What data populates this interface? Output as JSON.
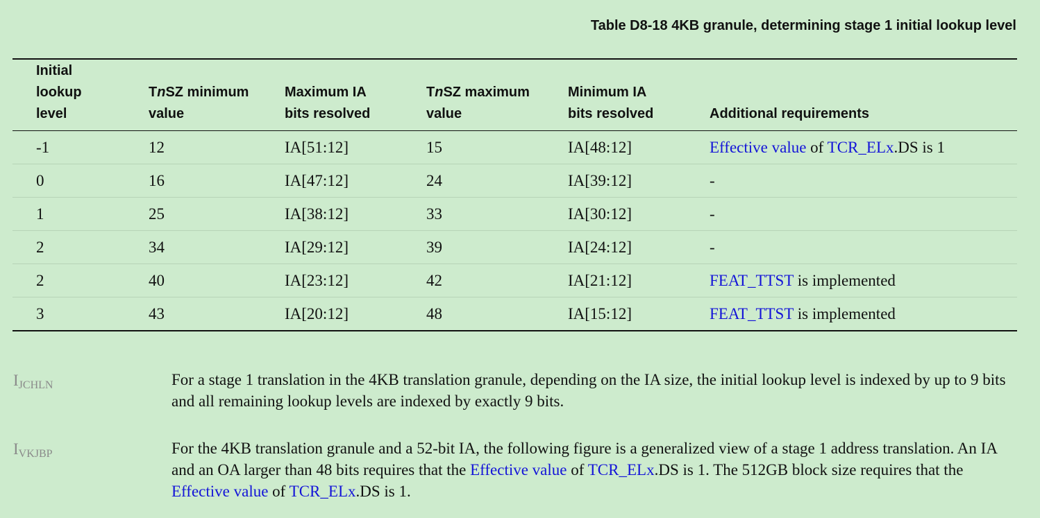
{
  "table": {
    "caption": "Table D8-18 4KB granule, determining stage 1 initial lookup level",
    "headers": {
      "h1": [
        "Initial",
        "lookup",
        "level"
      ],
      "h2_pre": "T",
      "h2_italic": "n",
      "h2_post": "SZ minimum",
      "h2_line2": "value",
      "h3": [
        "Maximum IA",
        "bits resolved"
      ],
      "h4_pre": "T",
      "h4_italic": "n",
      "h4_post": "SZ maximum",
      "h4_line2": "value",
      "h5": [
        "Minimum IA",
        "bits resolved"
      ],
      "h6": "Additional requirements"
    },
    "rows": [
      {
        "level": "-1",
        "tnsz_min": "12",
        "max_ia": "IA[51:12]",
        "tnsz_max": "15",
        "min_ia": "IA[48:12]",
        "req_link1": "Effective value",
        "req_mid": " of ",
        "req_link2": "TCR_ELx",
        "req_tail": ".DS is 1"
      },
      {
        "level": "0",
        "tnsz_min": "16",
        "max_ia": "IA[47:12]",
        "tnsz_max": "24",
        "min_ia": "IA[39:12]",
        "req": "-"
      },
      {
        "level": "1",
        "tnsz_min": "25",
        "max_ia": "IA[38:12]",
        "tnsz_max": "33",
        "min_ia": "IA[30:12]",
        "req": "-"
      },
      {
        "level": "2",
        "tnsz_min": "34",
        "max_ia": "IA[29:12]",
        "tnsz_max": "39",
        "min_ia": "IA[24:12]",
        "req": "-"
      },
      {
        "level": "2",
        "tnsz_min": "40",
        "max_ia": "IA[23:12]",
        "tnsz_max": "42",
        "min_ia": "IA[21:12]",
        "req_link": "FEAT_TTST",
        "req_tail": " is implemented"
      },
      {
        "level": "3",
        "tnsz_min": "43",
        "max_ia": "IA[20:12]",
        "tnsz_max": "48",
        "min_ia": "IA[15:12]",
        "req_link": "FEAT_TTST",
        "req_tail": " is implemented"
      }
    ]
  },
  "paragraphs": [
    {
      "id_main": "I",
      "id_sub": "JCHLN",
      "text": "For a stage 1 translation in the 4KB translation granule, depending on the IA size, the initial lookup level is indexed by up to 9 bits and all remaining lookup levels are indexed by exactly 9 bits."
    },
    {
      "id_main": "I",
      "id_sub": "VKJBP",
      "t1": "For the 4KB translation granule and a 52-bit IA, the following figure is a generalized view of a stage 1 address translation. An IA and an OA larger than 48 bits requires that the ",
      "l1": "Effective value",
      "t2": " of ",
      "l2": "TCR_ELx",
      "t3": ".DS is 1.  The 512GB block size requires that the ",
      "l3": "Effective value",
      "t4": " of ",
      "l4": "TCR_ELx",
      "t5": ".DS is 1."
    }
  ]
}
